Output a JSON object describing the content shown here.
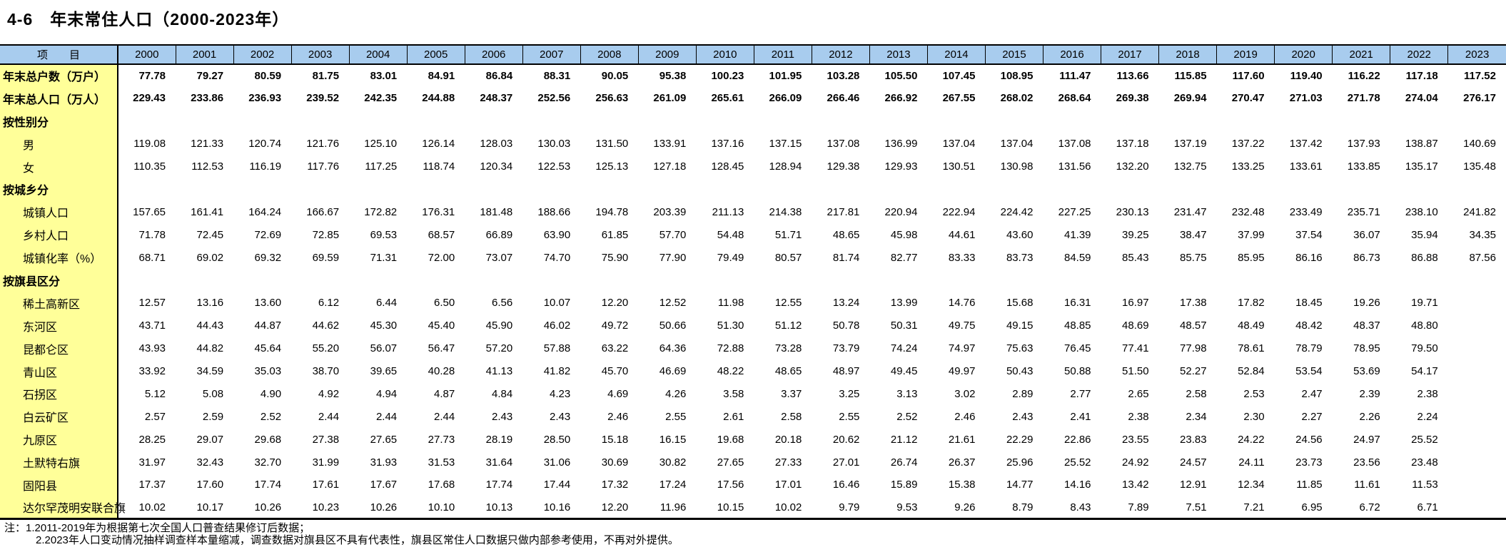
{
  "page": {
    "title": "4-6　年末常住人口（2000-2023年）"
  },
  "colors": {
    "header_bg": "#A8CCEE",
    "label_bg": "#FFFF99"
  },
  "chart_data": {
    "type": "table",
    "title": "4-6 年末常住人口（2000-2023年）",
    "item_header": "项　　目",
    "years": [
      "2000",
      "2001",
      "2002",
      "2003",
      "2004",
      "2005",
      "2006",
      "2007",
      "2008",
      "2009",
      "2010",
      "2011",
      "2012",
      "2013",
      "2014",
      "2015",
      "2016",
      "2017",
      "2018",
      "2019",
      "2020",
      "2021",
      "2022",
      "2023"
    ],
    "rows": [
      {
        "label": "年末总户数（万户）",
        "type": "total",
        "values": [
          "77.78",
          "79.27",
          "80.59",
          "81.75",
          "83.01",
          "84.91",
          "86.84",
          "88.31",
          "90.05",
          "95.38",
          "100.23",
          "101.95",
          "103.28",
          "105.50",
          "107.45",
          "108.95",
          "111.47",
          "113.66",
          "115.85",
          "117.60",
          "119.40",
          "116.22",
          "117.18",
          "117.52"
        ]
      },
      {
        "label": "年末总人口（万人）",
        "type": "total",
        "values": [
          "229.43",
          "233.86",
          "236.93",
          "239.52",
          "242.35",
          "244.88",
          "248.37",
          "252.56",
          "256.63",
          "261.09",
          "265.61",
          "266.09",
          "266.46",
          "266.92",
          "267.55",
          "268.02",
          "268.64",
          "269.38",
          "269.94",
          "270.47",
          "271.03",
          "271.78",
          "274.04",
          "276.17"
        ]
      },
      {
        "label": "按性别分",
        "type": "category",
        "values": []
      },
      {
        "label": "男",
        "type": "item",
        "values": [
          "119.08",
          "121.33",
          "120.74",
          "121.76",
          "125.10",
          "126.14",
          "128.03",
          "130.03",
          "131.50",
          "133.91",
          "137.16",
          "137.15",
          "137.08",
          "136.99",
          "137.04",
          "137.04",
          "137.08",
          "137.18",
          "137.19",
          "137.22",
          "137.42",
          "137.93",
          "138.87",
          "140.69"
        ]
      },
      {
        "label": "女",
        "type": "item",
        "values": [
          "110.35",
          "112.53",
          "116.19",
          "117.76",
          "117.25",
          "118.74",
          "120.34",
          "122.53",
          "125.13",
          "127.18",
          "128.45",
          "128.94",
          "129.38",
          "129.93",
          "130.51",
          "130.98",
          "131.56",
          "132.20",
          "132.75",
          "133.25",
          "133.61",
          "133.85",
          "135.17",
          "135.48"
        ]
      },
      {
        "label": "按城乡分",
        "type": "category",
        "values": []
      },
      {
        "label": "城镇人口",
        "type": "item",
        "values": [
          "157.65",
          "161.41",
          "164.24",
          "166.67",
          "172.82",
          "176.31",
          "181.48",
          "188.66",
          "194.78",
          "203.39",
          "211.13",
          "214.38",
          "217.81",
          "220.94",
          "222.94",
          "224.42",
          "227.25",
          "230.13",
          "231.47",
          "232.48",
          "233.49",
          "235.71",
          "238.10",
          "241.82"
        ]
      },
      {
        "label": "乡村人口",
        "type": "item",
        "values": [
          "71.78",
          "72.45",
          "72.69",
          "72.85",
          "69.53",
          "68.57",
          "66.89",
          "63.90",
          "61.85",
          "57.70",
          "54.48",
          "51.71",
          "48.65",
          "45.98",
          "44.61",
          "43.60",
          "41.39",
          "39.25",
          "38.47",
          "37.99",
          "37.54",
          "36.07",
          "35.94",
          "34.35"
        ]
      },
      {
        "label": "城镇化率（%）",
        "type": "item",
        "values": [
          "68.71",
          "69.02",
          "69.32",
          "69.59",
          "71.31",
          "72.00",
          "73.07",
          "74.70",
          "75.90",
          "77.90",
          "79.49",
          "80.57",
          "81.74",
          "82.77",
          "83.33",
          "83.73",
          "84.59",
          "85.43",
          "85.75",
          "85.95",
          "86.16",
          "86.73",
          "86.88",
          "87.56"
        ]
      },
      {
        "label": "按旗县区分",
        "type": "category",
        "values": []
      },
      {
        "label": "稀土高新区",
        "type": "item",
        "values": [
          "12.57",
          "13.16",
          "13.60",
          "6.12",
          "6.44",
          "6.50",
          "6.56",
          "10.07",
          "12.20",
          "12.52",
          "11.98",
          "12.55",
          "13.24",
          "13.99",
          "14.76",
          "15.68",
          "16.31",
          "16.97",
          "17.38",
          "17.82",
          "18.45",
          "19.26",
          "19.71",
          ""
        ]
      },
      {
        "label": "东河区",
        "type": "item",
        "values": [
          "43.71",
          "44.43",
          "44.87",
          "44.62",
          "45.30",
          "45.40",
          "45.90",
          "46.02",
          "49.72",
          "50.66",
          "51.30",
          "51.12",
          "50.78",
          "50.31",
          "49.75",
          "49.15",
          "48.85",
          "48.69",
          "48.57",
          "48.49",
          "48.42",
          "48.37",
          "48.80",
          ""
        ]
      },
      {
        "label": "昆都仑区",
        "type": "item",
        "values": [
          "43.93",
          "44.82",
          "45.64",
          "55.20",
          "56.07",
          "56.47",
          "57.20",
          "57.88",
          "63.22",
          "64.36",
          "72.88",
          "73.28",
          "73.79",
          "74.24",
          "74.97",
          "75.63",
          "76.45",
          "77.41",
          "77.98",
          "78.61",
          "78.79",
          "78.95",
          "79.50",
          ""
        ]
      },
      {
        "label": "青山区",
        "type": "item",
        "values": [
          "33.92",
          "34.59",
          "35.03",
          "38.70",
          "39.65",
          "40.28",
          "41.13",
          "41.82",
          "45.70",
          "46.69",
          "48.22",
          "48.65",
          "48.97",
          "49.45",
          "49.97",
          "50.43",
          "50.88",
          "51.50",
          "52.27",
          "52.84",
          "53.54",
          "53.69",
          "54.17",
          ""
        ]
      },
      {
        "label": "石拐区",
        "type": "item",
        "values": [
          "5.12",
          "5.08",
          "4.90",
          "4.92",
          "4.94",
          "4.87",
          "4.84",
          "4.23",
          "4.69",
          "4.26",
          "3.58",
          "3.37",
          "3.25",
          "3.13",
          "3.02",
          "2.89",
          "2.77",
          "2.65",
          "2.58",
          "2.53",
          "2.47",
          "2.39",
          "2.38",
          ""
        ]
      },
      {
        "label": "白云矿区",
        "type": "item",
        "values": [
          "2.57",
          "2.59",
          "2.52",
          "2.44",
          "2.44",
          "2.44",
          "2.43",
          "2.43",
          "2.46",
          "2.55",
          "2.61",
          "2.58",
          "2.55",
          "2.52",
          "2.46",
          "2.43",
          "2.41",
          "2.38",
          "2.34",
          "2.30",
          "2.27",
          "2.26",
          "2.24",
          ""
        ]
      },
      {
        "label": "九原区",
        "type": "item",
        "values": [
          "28.25",
          "29.07",
          "29.68",
          "27.38",
          "27.65",
          "27.73",
          "28.19",
          "28.50",
          "15.18",
          "16.15",
          "19.68",
          "20.18",
          "20.62",
          "21.12",
          "21.61",
          "22.29",
          "22.86",
          "23.55",
          "23.83",
          "24.22",
          "24.56",
          "24.97",
          "25.52",
          ""
        ]
      },
      {
        "label": "土默特右旗",
        "type": "item",
        "values": [
          "31.97",
          "32.43",
          "32.70",
          "31.99",
          "31.93",
          "31.53",
          "31.64",
          "31.06",
          "30.69",
          "30.82",
          "27.65",
          "27.33",
          "27.01",
          "26.74",
          "26.37",
          "25.96",
          "25.52",
          "24.92",
          "24.57",
          "24.11",
          "23.73",
          "23.56",
          "23.48",
          ""
        ]
      },
      {
        "label": "固阳县",
        "type": "item",
        "values": [
          "17.37",
          "17.60",
          "17.74",
          "17.61",
          "17.67",
          "17.68",
          "17.74",
          "17.44",
          "17.32",
          "17.24",
          "17.56",
          "17.01",
          "16.46",
          "15.89",
          "15.38",
          "14.77",
          "14.16",
          "13.42",
          "12.91",
          "12.34",
          "11.85",
          "11.61",
          "11.53",
          ""
        ]
      },
      {
        "label": "达尔罕茂明安联合旗",
        "type": "item",
        "values": [
          "10.02",
          "10.17",
          "10.26",
          "10.23",
          "10.26",
          "10.10",
          "10.13",
          "10.16",
          "12.20",
          "11.96",
          "10.15",
          "10.02",
          "9.79",
          "9.53",
          "9.26",
          "8.79",
          "8.43",
          "7.89",
          "7.51",
          "7.21",
          "6.95",
          "6.72",
          "6.71",
          ""
        ]
      }
    ]
  },
  "notes": {
    "line1": "注：1.2011-2019年为根据第七次全国人口普查结果修订后数据；",
    "line2": "2.2023年人口变动情况抽样调查样本量缩减，调查数据对旗县区不具有代表性，旗县区常住人口数据只做内部参考使用，不再对外提供。"
  }
}
